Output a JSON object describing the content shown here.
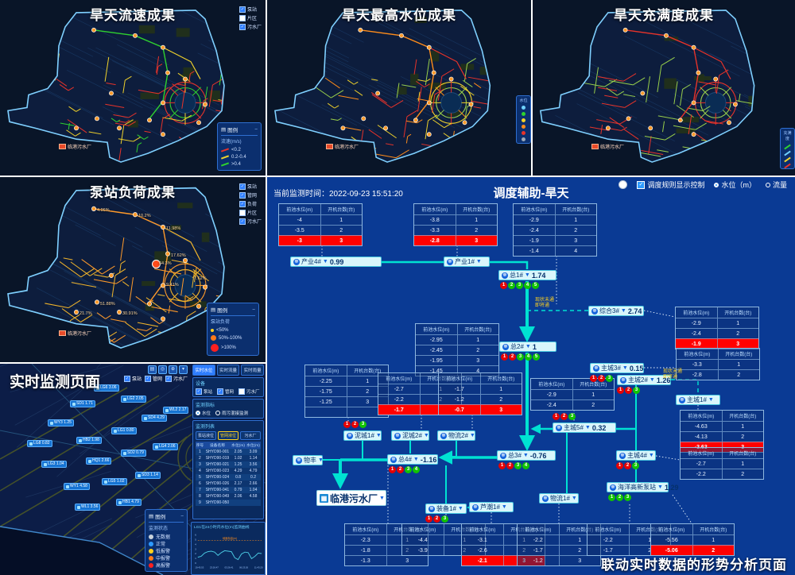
{
  "maps": {
    "velocity": {
      "title": "旱天流速成果",
      "plant_label": "临港污水厂",
      "layers": [
        {
          "label": "泵站",
          "checked": true
        },
        {
          "label": "片区",
          "checked": false
        },
        {
          "label": "污水厂",
          "checked": true
        }
      ],
      "legend": {
        "title": "图例",
        "subtitle": "流速(m/s)",
        "items": [
          {
            "label": "<0.2",
            "color": "#e8332a"
          },
          {
            "label": "0.2-0.4",
            "color": "#f0d22b"
          },
          {
            "label": ">0.4",
            "color": "#2fd12f"
          }
        ]
      }
    },
    "level": {
      "title": "旱天最高水位成果",
      "plant_label": "临港污水厂",
      "legend": {
        "title": "水位",
        "colors": [
          "#6fd1ff",
          "#2fd12f",
          "#f0d22b",
          "#ff8c1a",
          "#e8332a",
          "#9aa7b8"
        ]
      }
    },
    "fullness": {
      "title": "旱天充满度成果",
      "plant_label": "临港污水厂",
      "legend": {
        "title": "充满度",
        "colors": [
          "#2fd12f",
          "#6fd1ff",
          "#f0d22b",
          "#e8332a"
        ]
      }
    },
    "pump": {
      "title": "泵站负荷成果",
      "plant_label": "临港污水厂",
      "layers": [
        {
          "label": "泵站",
          "checked": true
        },
        {
          "label": "管网",
          "checked": true
        },
        {
          "label": "负荷",
          "checked": true
        },
        {
          "label": "片区",
          "checked": false
        },
        {
          "label": "污水厂",
          "checked": true
        }
      ],
      "legend": {
        "title": "图例",
        "subtitle": "泵站负荷",
        "items": [
          {
            "label": "<50%",
            "color": "#ffd21e"
          },
          {
            "label": "50%-100%",
            "color": "#ff7a1a"
          },
          {
            "label": ">100%",
            "color": "#ff2020"
          }
        ]
      },
      "marker_values": [
        "4.96%",
        "10.2%",
        "11.98%",
        "64.3%",
        "17.62%",
        "9.41%",
        "30.91%",
        "51.88%",
        "7.62%",
        "21.7%"
      ]
    }
  },
  "realtime": {
    "title": "实时监测页面",
    "tabs": [
      "实时水位",
      "实时流量",
      "实时雨量"
    ],
    "map_layers": [
      "泵站",
      "管网",
      "污水厂"
    ],
    "device": {
      "title": "设备",
      "options": [
        {
          "label": "泵站",
          "checked": true
        },
        {
          "label": "管网",
          "checked": true
        },
        {
          "label": "污水厂",
          "checked": false
        }
      ]
    },
    "indicator": {
      "title": "监测指标",
      "options": [
        {
          "label": "水位",
          "checked": true
        },
        {
          "label": "雨污混接监测",
          "checked": false
        }
      ]
    },
    "list": {
      "title": "监测列表",
      "buttons": [
        "泵站液位",
        "管网液位",
        "污水厂"
      ],
      "columns": [
        "序号",
        "设备名称",
        "水位(m)",
        "水位(m)"
      ],
      "rows": [
        [
          "1",
          "SHYD90-001",
          "2.05",
          "3.09"
        ],
        [
          "2",
          "SHYD90-019",
          "1.02",
          "1.14"
        ],
        [
          "3",
          "SHYD90-021",
          "1.25",
          "3.56"
        ],
        [
          "4",
          "SHYD90-023",
          "4.29",
          "4.79"
        ],
        [
          "5",
          "SHYD90-024",
          "0.8",
          "0.2"
        ],
        [
          "6",
          "SHYD90-026",
          "2.17",
          "2.66"
        ],
        [
          "7",
          "SHYD90-041",
          "0.79",
          "1.04"
        ],
        [
          "8",
          "SHYD90-049",
          "2.06",
          "4.58"
        ],
        [
          "9",
          "SHYD90-050",
          "",
          ""
        ]
      ]
    },
    "legend": {
      "title": "图例",
      "subtitle": "监测状态",
      "items": [
        {
          "label": "无数据",
          "color": "#c8d2dc"
        },
        {
          "label": "正常",
          "color": "#2e9bff"
        },
        {
          "label": "低报警",
          "color": "#ffd21e"
        },
        {
          "label": "中报警",
          "color": "#ff7a1a"
        },
        {
          "label": "高报警",
          "color": "#ff2020"
        }
      ]
    },
    "chart": {
      "title": "LG1在24小时内水位(m)监测曲线",
      "threshold_label": "地面标高(m)",
      "threshold": 4.8,
      "y_ticks": [
        0,
        1,
        2,
        3,
        4,
        5,
        6
      ],
      "x_labels": [
        "19:43:53",
        "23:26:47",
        "03:26:41",
        "06:23:26",
        "11:43:20"
      ],
      "values": [
        1.2,
        1.4,
        2.1,
        2.4,
        2.5,
        2.3,
        1.6,
        2.2,
        2.6,
        2.5,
        2.4,
        1.1,
        0.7,
        1.9,
        2.3,
        2.2,
        0.9,
        1.4,
        2.1,
        2.0
      ]
    },
    "stations": [
      "LG6 3.06",
      "SD1 1.71",
      "LG2 2.05",
      "WY3 1.25",
      "LG8 0.82",
      "HB2 1.98",
      "LG1 0.80",
      "SD4 4.29",
      "WL2 2.17",
      "LG3 1.04",
      "HQ1 2.66",
      "SD2 0.79",
      "LG4 2.06",
      "WY1 4.58",
      "LG5 1.02",
      "SD3 1.14",
      "WL1 3.56",
      "HB1 4.79"
    ]
  },
  "dispatch": {
    "monitor_time_label": "当前监测时间：",
    "monitor_time": "2022-09-23 15:51:20",
    "title": "调度辅助-旱天",
    "caption": "联动实时数据的形势分析页面",
    "controls": {
      "rule_label": "调度规则显示控制",
      "radio_level": "水位（m）",
      "radio_flow": "流量"
    },
    "table_header": [
      "前池水位(m)",
      "开机台数(台)"
    ],
    "link_note": [
      "现状未通",
      "即将通"
    ],
    "nodes": [
      {
        "label": "产业4#",
        "value": "0.99",
        "dots": []
      },
      {
        "label": "产业1#",
        "value": "",
        "dots": []
      },
      {
        "label": "总1#",
        "value": "1.74",
        "dots": [
          "r",
          "g",
          "g",
          "g",
          "g"
        ]
      },
      {
        "label": "综合3#",
        "value": "2.74",
        "dots": []
      },
      {
        "label": "总2#",
        "value": "1",
        "dots": [
          "r",
          "r",
          "g",
          "g",
          "g"
        ]
      },
      {
        "label": "主城3#",
        "value": "0.15",
        "dots": [
          "r",
          "r",
          "g"
        ]
      },
      {
        "label": "主城2#",
        "value": "1.26",
        "dots": [
          "r",
          "r",
          "g"
        ]
      },
      {
        "label": "主城1#",
        "value": "",
        "dots": []
      },
      {
        "label": "主城5#",
        "value": "0.32",
        "dots": [
          "r",
          "r",
          "g"
        ]
      },
      {
        "label": "总3#",
        "value": "-0.76",
        "dots": [
          "r",
          "r",
          "g",
          "g"
        ]
      },
      {
        "label": "总4#",
        "value": "-1.16",
        "dots": [
          "r",
          "r",
          "g",
          "g"
        ]
      },
      {
        "label": "泥城1#",
        "value": "",
        "dots": [
          "r",
          "r",
          "g"
        ]
      },
      {
        "label": "泥城2#",
        "value": "",
        "dots": []
      },
      {
        "label": "物流2#",
        "value": "",
        "dots": []
      },
      {
        "label": "物丰",
        "value": "",
        "dots": []
      },
      {
        "label": "临港污水厂",
        "value": "",
        "dots": [],
        "plant": true
      },
      {
        "label": "装备1#",
        "value": "",
        "dots": [
          "r",
          "r",
          "g"
        ]
      },
      {
        "label": "芦潮1#",
        "value": "",
        "dots": []
      },
      {
        "label": "物流1#",
        "value": "",
        "dots": []
      },
      {
        "label": "主城4#",
        "value": "",
        "dots": [
          "r",
          "r",
          "g"
        ]
      },
      {
        "label": "海洋高新泵站",
        "value": "1.29",
        "dots": [
          "g",
          "g",
          "g"
        ]
      }
    ],
    "tables": [
      {
        "rows": [
          [
            "-4",
            "1"
          ],
          [
            "-3.5",
            "2"
          ],
          [
            "-3",
            "3"
          ]
        ],
        "red": [
          3
        ]
      },
      {
        "rows": [
          [
            "-3.8",
            "1"
          ],
          [
            "-3.3",
            "2"
          ],
          [
            "-2.8",
            "3"
          ]
        ],
        "red": [
          3
        ]
      },
      {
        "rows": [
          [
            "-2.9",
            "1"
          ],
          [
            "-2.4",
            "2"
          ],
          [
            "-1.9",
            "3"
          ],
          [
            "-1.4",
            "4"
          ]
        ],
        "red": []
      },
      {
        "rows": [
          [
            "-2.9",
            "1"
          ],
          [
            "-2.4",
            "2"
          ],
          [
            "-1.9",
            "3"
          ]
        ],
        "red": [
          3
        ]
      },
      {
        "rows": [
          [
            "-2.95",
            "1"
          ],
          [
            "-2.45",
            "2"
          ],
          [
            "-1.95",
            "3"
          ],
          [
            "-1.45",
            "4"
          ]
        ],
        "red": []
      },
      {
        "rows": [
          [
            "-3.3",
            "1"
          ],
          [
            "-2.8",
            "2"
          ]
        ],
        "red": []
      },
      {
        "rows": [
          [
            "-2.25",
            "1"
          ],
          [
            "-1.75",
            "2"
          ],
          [
            "-1.25",
            "3"
          ],
          [
            "",
            ""
          ]
        ],
        "red": []
      },
      {
        "rows": [
          [
            "-2.7",
            "1"
          ],
          [
            "-2.2",
            "2"
          ],
          [
            "-1.7",
            "3"
          ]
        ],
        "red": [
          3
        ]
      },
      {
        "rows": [
          [
            "-1.7",
            "1"
          ],
          [
            "-1.2",
            "2"
          ],
          [
            "-0.7",
            "3"
          ]
        ],
        "red": [
          3
        ]
      },
      {
        "rows": [
          [
            "-2.9",
            "1"
          ],
          [
            "-2.4",
            "2"
          ]
        ],
        "red": []
      },
      {
        "rows": [
          [
            "-4.63",
            "1"
          ],
          [
            "-4.13",
            "2"
          ],
          [
            "-3.63",
            "3"
          ]
        ],
        "red": [
          3
        ]
      },
      {
        "rows": [
          [
            "-2.7",
            "1"
          ],
          [
            "-2.2",
            "2"
          ]
        ],
        "red": []
      },
      {
        "rows": [
          [
            "-2.3",
            "1"
          ],
          [
            "-1.8",
            "2"
          ],
          [
            "-1.3",
            "3"
          ]
        ],
        "red": []
      },
      {
        "rows": [
          [
            "-4.4",
            "1"
          ],
          [
            "-3.9",
            "2"
          ]
        ],
        "red": []
      },
      {
        "rows": [
          [
            "-3.1",
            "1"
          ],
          [
            "-2.6",
            "2"
          ],
          [
            "-2.1",
            "3"
          ]
        ],
        "red": [
          3
        ]
      },
      {
        "rows": [
          [
            "-2.2",
            "1"
          ],
          [
            "-1.7",
            "2"
          ],
          [
            "-1.2",
            "3"
          ]
        ],
        "red": []
      },
      {
        "rows": [
          [
            "-2.2",
            "1"
          ],
          [
            "-1.7",
            "2"
          ]
        ],
        "red": []
      },
      {
        "rows": [
          [
            "-5.56",
            "1"
          ],
          [
            "-5.06",
            "2"
          ]
        ],
        "red": [
          2
        ]
      }
    ]
  }
}
